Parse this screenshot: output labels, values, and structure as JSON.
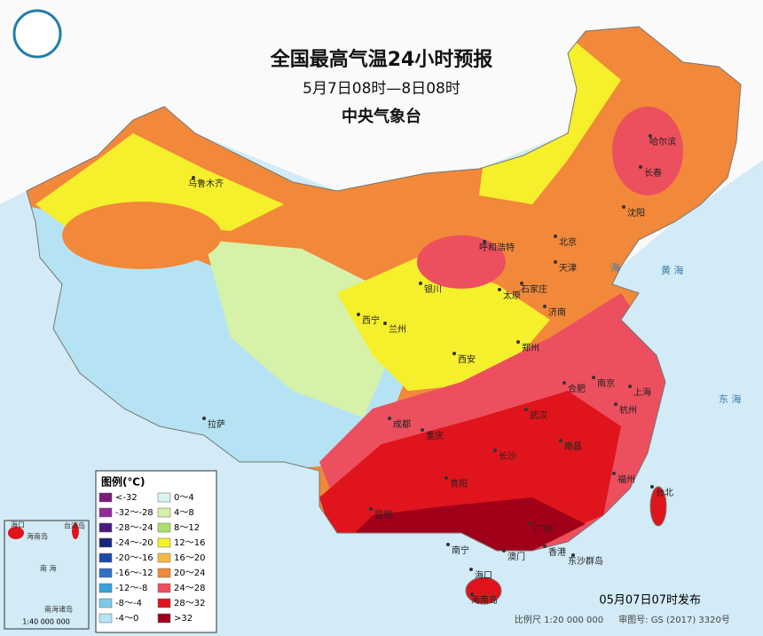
{
  "header": {
    "title": "全国最高气温24小时预报",
    "subtitle": "5月7日08时—8日08时",
    "issuer": "中央气象台"
  },
  "legend": {
    "title": "图例(℃)",
    "items": [
      {
        "label": "<-32",
        "color": "#7a1c7e"
      },
      {
        "label": "-32～-28",
        "color": "#8e2b96"
      },
      {
        "label": "-28～-24",
        "color": "#4a1a80"
      },
      {
        "label": "-24～-20",
        "color": "#17247a"
      },
      {
        "label": "-20～-16",
        "color": "#1f4aa8"
      },
      {
        "label": "-16～-12",
        "color": "#2f6fc8"
      },
      {
        "label": "-12～-8",
        "color": "#3aa0dc"
      },
      {
        "label": "-8～-4",
        "color": "#7ccbec"
      },
      {
        "label": "-4～0",
        "color": "#b6e3f4"
      },
      {
        "label": "0～4",
        "color": "#d8f3f0"
      },
      {
        "label": "4～8",
        "color": "#d6f2a8"
      },
      {
        "label": "8～12",
        "color": "#a9e06a"
      },
      {
        "label": "12～16",
        "color": "#f6ef2c"
      },
      {
        "label": "16～20",
        "color": "#f6b84a"
      },
      {
        "label": "20～24",
        "color": "#f2883a"
      },
      {
        "label": "24～28",
        "color": "#ec4f5e"
      },
      {
        "label": "28～32",
        "color": "#e0141c"
      },
      {
        "label": ">32",
        "color": "#a0001a"
      }
    ]
  },
  "cities": [
    "乌鲁木齐",
    "哈尔滨",
    "长春",
    "沈阳",
    "北京",
    "天津",
    "呼和浩特",
    "银川",
    "太原",
    "石家庄",
    "济南",
    "西宁",
    "兰州",
    "郑州",
    "西安",
    "合肥",
    "南京",
    "上海",
    "杭州",
    "武汉",
    "成都",
    "重庆",
    "长沙",
    "南昌",
    "拉萨",
    "贵阳",
    "昆明",
    "福州",
    "台北",
    "南宁",
    "广州",
    "澳门",
    "香港",
    "海口",
    "东沙群岛",
    "海南岛"
  ],
  "seas": [
    "海",
    "黄 海",
    "东 海"
  ],
  "inset": {
    "labels": [
      "海口",
      "海南岛",
      "台湾岛",
      "南 海",
      "南海诸岛"
    ],
    "scale": "1:40 000 000"
  },
  "footer": {
    "scale": "比例尺 1:20 000 000",
    "approval": "审图号: GS (2017) 3320号",
    "issued": "05月07日07时发布"
  }
}
